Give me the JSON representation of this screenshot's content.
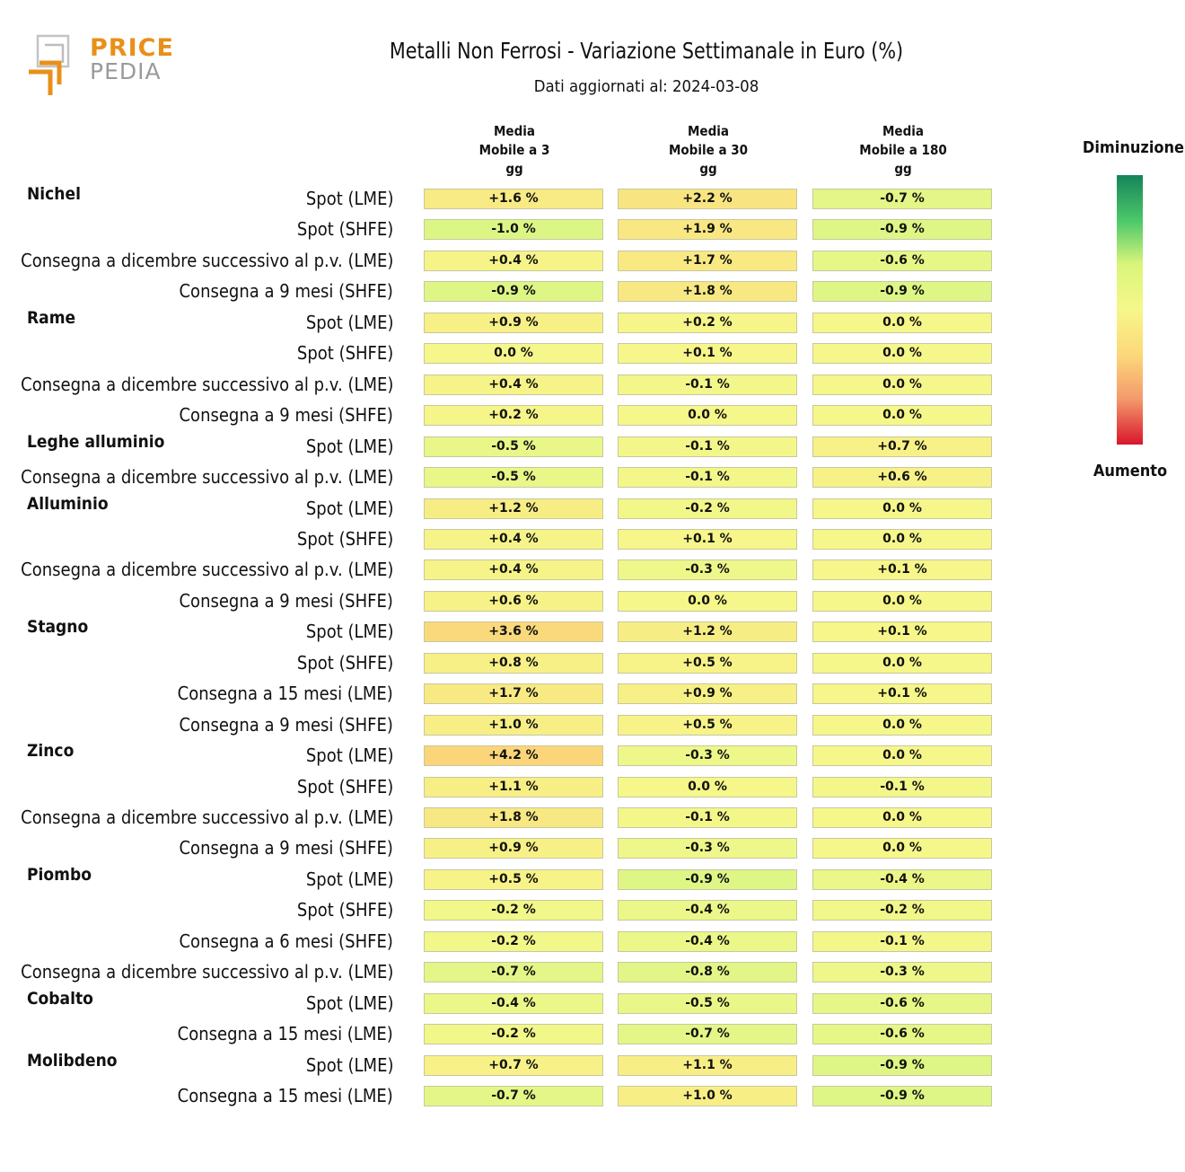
{
  "logo": {
    "line1": "PRICE",
    "line2": "PEDIA"
  },
  "title": "Metalli Non Ferrosi - Variazione Settimanale in Euro (%)",
  "subtitle": "Dati aggiornati al: 2024-03-08",
  "legend": {
    "top": "Diminuzione",
    "bottom": "Aumento",
    "colors": [
      "#15845a",
      "#4dc86a",
      "#d9f57a",
      "#f6f78a",
      "#fcd77a",
      "#f49a6c",
      "#d8162b"
    ]
  },
  "chart_data": {
    "type": "table",
    "columns": [
      "Media\nMobile a 3\ngg",
      "Media\nMobile a 30\ngg",
      "Media\nMobile a 180\ngg"
    ],
    "rows": [
      {
        "group": "Nichel",
        "label": "Spot (LME)",
        "values": [
          "+1.6 %",
          "+2.2 %",
          "-0.7 %"
        ]
      },
      {
        "group": "",
        "label": "Spot (SHFE)",
        "values": [
          "-1.0 %",
          "+1.9 %",
          "-0.9 %"
        ]
      },
      {
        "group": "",
        "label": "Consegna a dicembre successivo al p.v. (LME)",
        "values": [
          "+0.4 %",
          "+1.7 %",
          "-0.6 %"
        ]
      },
      {
        "group": "",
        "label": "Consegna a 9 mesi (SHFE)",
        "values": [
          "-0.9 %",
          "+1.8 %",
          "-0.9 %"
        ]
      },
      {
        "group": "Rame",
        "label": "Spot (LME)",
        "values": [
          "+0.9 %",
          "+0.2 %",
          "0.0 %"
        ]
      },
      {
        "group": "",
        "label": "Spot (SHFE)",
        "values": [
          "0.0 %",
          "+0.1 %",
          "0.0 %"
        ]
      },
      {
        "group": "",
        "label": "Consegna a dicembre successivo al p.v. (LME)",
        "values": [
          "+0.4 %",
          "-0.1 %",
          "0.0 %"
        ]
      },
      {
        "group": "",
        "label": "Consegna a 9 mesi (SHFE)",
        "values": [
          "+0.2 %",
          "0.0 %",
          "0.0 %"
        ]
      },
      {
        "group": "Leghe alluminio",
        "label": "Spot (LME)",
        "values": [
          "-0.5 %",
          "-0.1 %",
          "+0.7 %"
        ]
      },
      {
        "group": "",
        "label": "Consegna a dicembre successivo al p.v. (LME)",
        "values": [
          "-0.5 %",
          "-0.1 %",
          "+0.6 %"
        ]
      },
      {
        "group": "Alluminio",
        "label": "Spot (LME)",
        "values": [
          "+1.2 %",
          "-0.2 %",
          "0.0 %"
        ]
      },
      {
        "group": "",
        "label": "Spot (SHFE)",
        "values": [
          "+0.4 %",
          "+0.1 %",
          "0.0 %"
        ]
      },
      {
        "group": "",
        "label": "Consegna a dicembre successivo al p.v. (LME)",
        "values": [
          "+0.4 %",
          "-0.3 %",
          "+0.1 %"
        ]
      },
      {
        "group": "",
        "label": "Consegna a 9 mesi (SHFE)",
        "values": [
          "+0.6 %",
          "0.0 %",
          "0.0 %"
        ]
      },
      {
        "group": "Stagno",
        "label": "Spot (LME)",
        "values": [
          "+3.6 %",
          "+1.2 %",
          "+0.1 %"
        ]
      },
      {
        "group": "",
        "label": "Spot (SHFE)",
        "values": [
          "+0.8 %",
          "+0.5 %",
          "0.0 %"
        ]
      },
      {
        "group": "",
        "label": "Consegna a 15 mesi (LME)",
        "values": [
          "+1.7 %",
          "+0.9 %",
          "+0.1 %"
        ]
      },
      {
        "group": "",
        "label": "Consegna a 9 mesi (SHFE)",
        "values": [
          "+1.0 %",
          "+0.5 %",
          "0.0 %"
        ]
      },
      {
        "group": "Zinco",
        "label": "Spot (LME)",
        "values": [
          "+4.2 %",
          "-0.3 %",
          "0.0 %"
        ]
      },
      {
        "group": "",
        "label": "Spot (SHFE)",
        "values": [
          "+1.1 %",
          "0.0 %",
          "-0.1 %"
        ]
      },
      {
        "group": "",
        "label": "Consegna a dicembre successivo al p.v. (LME)",
        "values": [
          "+1.8 %",
          "-0.1 %",
          "0.0 %"
        ]
      },
      {
        "group": "",
        "label": "Consegna a 9 mesi (SHFE)",
        "values": [
          "+0.9 %",
          "-0.3 %",
          "0.0 %"
        ]
      },
      {
        "group": "Piombo",
        "label": "Spot (LME)",
        "values": [
          "+0.5 %",
          "-0.9 %",
          "-0.4 %"
        ]
      },
      {
        "group": "",
        "label": "Spot (SHFE)",
        "values": [
          "-0.2 %",
          "-0.4 %",
          "-0.2 %"
        ]
      },
      {
        "group": "",
        "label": "Consegna a 6 mesi (SHFE)",
        "values": [
          "-0.2 %",
          "-0.4 %",
          "-0.1 %"
        ]
      },
      {
        "group": "",
        "label": "Consegna a dicembre successivo al p.v. (LME)",
        "values": [
          "-0.7 %",
          "-0.8 %",
          "-0.3 %"
        ]
      },
      {
        "group": "Cobalto",
        "label": "Spot (LME)",
        "values": [
          "-0.4 %",
          "-0.5 %",
          "-0.6 %"
        ]
      },
      {
        "group": "",
        "label": "Consegna a 15 mesi (LME)",
        "values": [
          "-0.2 %",
          "-0.7 %",
          "-0.6 %"
        ]
      },
      {
        "group": "Molibdeno",
        "label": "Spot (LME)",
        "values": [
          "+0.7 %",
          "+1.1 %",
          "-0.9 %"
        ]
      },
      {
        "group": "",
        "label": "Consegna a 15 mesi (LME)",
        "values": [
          "-0.7 %",
          "+1.0 %",
          "-0.9 %"
        ]
      }
    ]
  }
}
